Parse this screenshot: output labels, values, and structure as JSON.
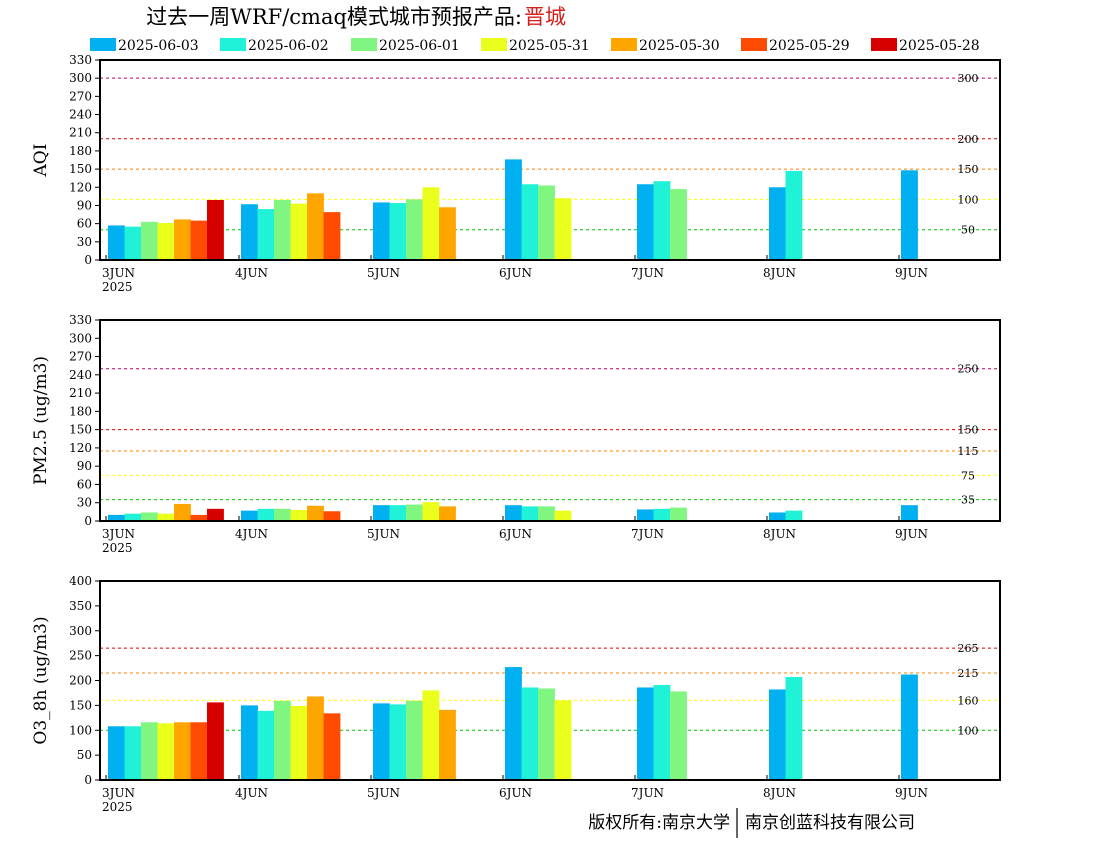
{
  "title_main": "过去一周WRF/cmaq模式城市预报产品:",
  "title_city": "晋城",
  "legend": [
    {
      "label": "2025-06-03",
      "color": "#00b0f0"
    },
    {
      "label": "2025-06-02",
      "color": "#1ff2d6"
    },
    {
      "label": "2025-06-01",
      "color": "#80f580"
    },
    {
      "label": "2025-05-31",
      "color": "#eaff1c"
    },
    {
      "label": "2025-05-30",
      "color": "#ffa500"
    },
    {
      "label": "2025-05-29",
      "color": "#ff4b00"
    },
    {
      "label": "2025-05-28",
      "color": "#d60000"
    }
  ],
  "copyright": {
    "left": "版权所有:南京大学",
    "right": "南京创蓝科技有限公司"
  },
  "chart_data": [
    {
      "type": "bar",
      "ylabel": "AQI",
      "ylim": [
        0,
        330
      ],
      "yticks": [
        0,
        30,
        60,
        90,
        120,
        150,
        180,
        210,
        240,
        270,
        300,
        330
      ],
      "xticks": [
        "3JUN",
        "4JUN",
        "5JUN",
        "6JUN",
        "7JUN",
        "8JUN",
        "9JUN"
      ],
      "xsub": "2025",
      "thresholds": [
        {
          "value": 300,
          "label": "300",
          "color": "#c00060"
        },
        {
          "value": 200,
          "label": "200",
          "color": "#e00000"
        },
        {
          "value": 150,
          "label": "150",
          "color": "#ff8000"
        },
        {
          "value": 100,
          "label": "100",
          "color": "#ffff00"
        },
        {
          "value": 50,
          "label": "50",
          "color": "#00c000"
        }
      ],
      "groups": [
        {
          "day": "3JUN",
          "values": [
            57,
            55,
            63,
            61,
            67,
            65,
            99
          ]
        },
        {
          "day": "4JUN",
          "values": [
            92,
            84,
            99,
            93,
            110,
            79,
            null
          ]
        },
        {
          "day": "5JUN",
          "values": [
            95,
            94,
            100,
            120,
            87,
            null,
            null
          ]
        },
        {
          "day": "6JUN",
          "values": [
            166,
            125,
            123,
            102,
            null,
            null,
            null
          ]
        },
        {
          "day": "7JUN",
          "values": [
            125,
            130,
            117,
            null,
            null,
            null,
            null
          ]
        },
        {
          "day": "8JUN",
          "values": [
            120,
            147,
            null,
            null,
            null,
            null,
            null
          ]
        },
        {
          "day": "9JUN",
          "values": [
            148,
            null,
            null,
            null,
            null,
            null,
            null
          ]
        }
      ]
    },
    {
      "type": "bar",
      "ylabel": "PM2.5 (ug/m3)",
      "ylim": [
        0,
        330
      ],
      "yticks": [
        0,
        30,
        60,
        90,
        120,
        150,
        180,
        210,
        240,
        270,
        300,
        330
      ],
      "xticks": [
        "3JUN",
        "4JUN",
        "5JUN",
        "6JUN",
        "7JUN",
        "8JUN",
        "9JUN"
      ],
      "xsub": "2025",
      "thresholds": [
        {
          "value": 250,
          "label": "250",
          "color": "#c00060"
        },
        {
          "value": 150,
          "label": "150",
          "color": "#e00000"
        },
        {
          "value": 115,
          "label": "115",
          "color": "#ff8000"
        },
        {
          "value": 75,
          "label": "75",
          "color": "#ffff00"
        },
        {
          "value": 35,
          "label": "35",
          "color": "#00c000"
        }
      ],
      "groups": [
        {
          "day": "3JUN",
          "values": [
            10,
            12,
            14,
            12,
            28,
            10,
            20
          ]
        },
        {
          "day": "4JUN",
          "values": [
            17,
            20,
            20,
            18,
            25,
            16,
            null
          ]
        },
        {
          "day": "5JUN",
          "values": [
            26,
            26,
            27,
            31,
            24,
            null,
            null
          ]
        },
        {
          "day": "6JUN",
          "values": [
            26,
            24,
            24,
            17,
            null,
            null,
            null
          ]
        },
        {
          "day": "7JUN",
          "values": [
            19,
            20,
            22,
            null,
            null,
            null,
            null
          ]
        },
        {
          "day": "8JUN",
          "values": [
            14,
            17,
            null,
            null,
            null,
            null,
            null
          ]
        },
        {
          "day": "9JUN",
          "values": [
            26,
            null,
            null,
            null,
            null,
            null,
            null
          ]
        }
      ]
    },
    {
      "type": "bar",
      "ylabel": "O3_8h (ug/m3)",
      "ylim": [
        0,
        400
      ],
      "yticks": [
        0,
        50,
        100,
        150,
        200,
        250,
        300,
        350,
        400
      ],
      "xticks": [
        "3JUN",
        "4JUN",
        "5JUN",
        "6JUN",
        "7JUN",
        "8JUN",
        "9JUN"
      ],
      "xsub": "2025",
      "thresholds": [
        {
          "value": 265,
          "label": "265",
          "color": "#e00000"
        },
        {
          "value": 215,
          "label": "215",
          "color": "#ff8000"
        },
        {
          "value": 160,
          "label": "160",
          "color": "#ffff00"
        },
        {
          "value": 100,
          "label": "100",
          "color": "#00c000"
        }
      ],
      "groups": [
        {
          "day": "3JUN",
          "values": [
            108,
            108,
            116,
            114,
            116,
            116,
            156
          ]
        },
        {
          "day": "4JUN",
          "values": [
            150,
            139,
            159,
            149,
            168,
            134,
            null
          ]
        },
        {
          "day": "5JUN",
          "values": [
            154,
            152,
            159,
            180,
            141,
            null,
            null
          ]
        },
        {
          "day": "6JUN",
          "values": [
            227,
            186,
            184,
            160,
            null,
            null,
            null
          ]
        },
        {
          "day": "7JUN",
          "values": [
            186,
            191,
            178,
            null,
            null,
            null,
            null
          ]
        },
        {
          "day": "8JUN",
          "values": [
            182,
            207,
            null,
            null,
            null,
            null,
            null
          ]
        },
        {
          "day": "9JUN",
          "values": [
            212,
            null,
            null,
            null,
            null,
            null,
            null
          ]
        }
      ]
    }
  ]
}
